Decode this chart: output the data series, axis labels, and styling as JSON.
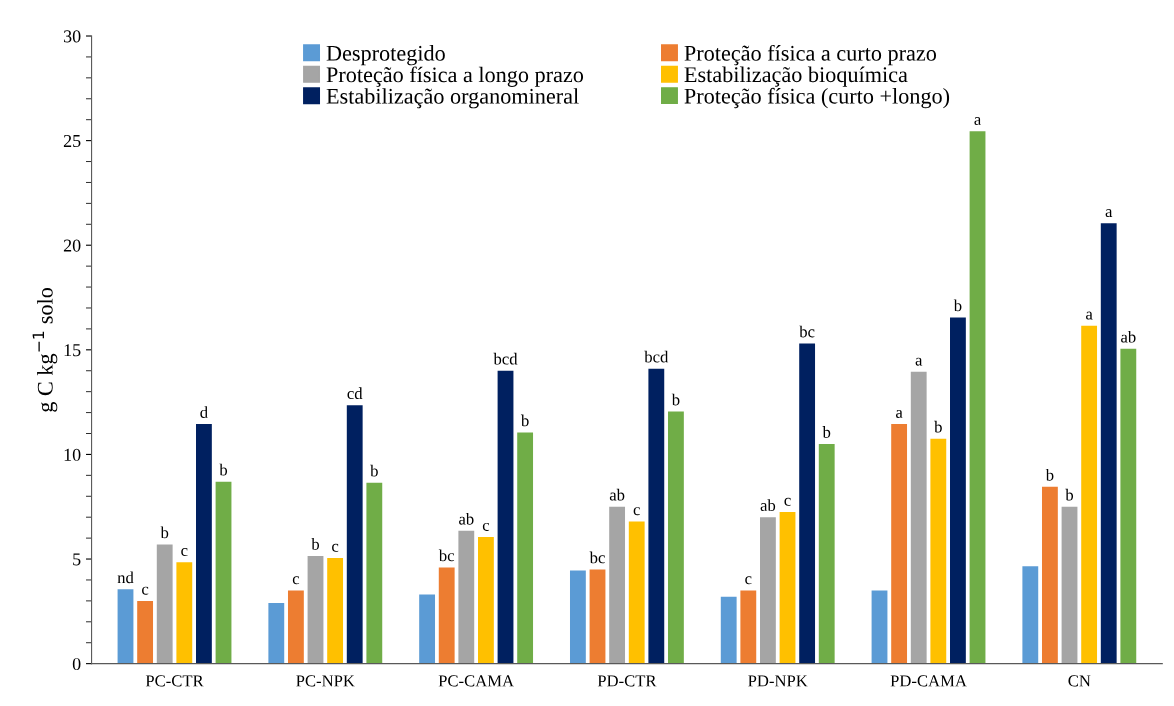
{
  "chart_data": {
    "type": "bar",
    "categories": [
      "PC-CTR",
      "PC-NPK",
      "PC-CAMA",
      "PD-CTR",
      "PD-NPK",
      "PD-CAMA",
      "CN"
    ],
    "ylabel": "g C kg$^{−1}$ solo",
    "ylim": [
      0,
      30
    ],
    "yticks": [
      0,
      5,
      10,
      15,
      20,
      25,
      30
    ],
    "grid": false,
    "legend": "top",
    "series": [
      {
        "name": "Desprotegido",
        "color": "#5b9bd5",
        "values": [
          3.55,
          2.9,
          3.3,
          4.45,
          3.2,
          3.5,
          4.65
        ],
        "value_labels": [
          "nd",
          null,
          null,
          null,
          null,
          null,
          null
        ]
      },
      {
        "name": "Proteção física a curto prazo",
        "color": "#ed7d31",
        "values": [
          3.0,
          3.5,
          4.6,
          4.5,
          3.5,
          11.45,
          8.45
        ],
        "value_labels": [
          "c",
          "c",
          "bc",
          "bc",
          "c",
          "a",
          "b"
        ]
      },
      {
        "name": "Proteção física a longo prazo",
        "color": "#a5a5a5",
        "values": [
          5.7,
          5.15,
          6.35,
          7.5,
          7.0,
          13.95,
          7.5
        ],
        "value_labels": [
          "b",
          "b",
          "ab",
          "ab",
          "ab",
          "a",
          "b"
        ]
      },
      {
        "name": "Estabilização bioquímica",
        "color": "#ffc000",
        "values": [
          4.85,
          5.05,
          6.05,
          6.8,
          7.25,
          10.75,
          16.15
        ],
        "value_labels": [
          "c",
          "c",
          "c",
          "c",
          "c",
          "b",
          "a"
        ]
      },
      {
        "name": "Estabilização organomineral",
        "color": "#002060",
        "values": [
          11.45,
          12.35,
          14.0,
          14.1,
          15.3,
          16.55,
          21.05
        ],
        "value_labels": [
          "d",
          "cd",
          "bcd",
          "bcd",
          "bc",
          "b",
          "a"
        ]
      },
      {
        "name": "Proteção física (curto +longo)",
        "color": "#70ad47",
        "values": [
          8.7,
          8.65,
          11.05,
          12.05,
          10.5,
          25.45,
          15.05
        ],
        "value_labels": [
          "b",
          "b",
          "b",
          "b",
          "b",
          "a",
          "ab"
        ]
      }
    ]
  }
}
